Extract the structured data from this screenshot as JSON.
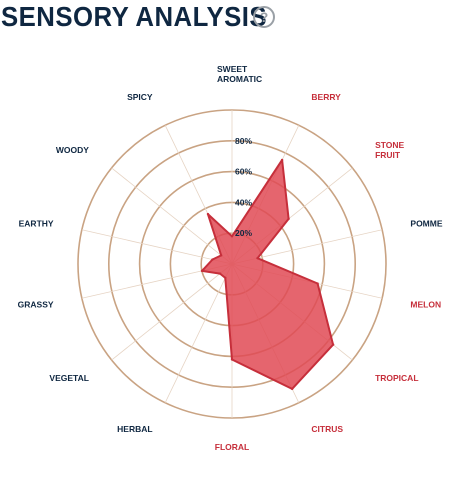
{
  "header": {
    "title": "SENSORY ANALYSIS",
    "help_glyph": "?"
  },
  "colors": {
    "navy": "#0f2741",
    "red": "#c62f3b",
    "ring": "#c9a383",
    "fill": "#e04a55"
  },
  "chart_data": {
    "type": "radar",
    "rmax": 100,
    "ticks": [
      {
        "value": 20,
        "label": "20%"
      },
      {
        "value": 40,
        "label": "40%"
      },
      {
        "value": 60,
        "label": "60%"
      },
      {
        "value": 80,
        "label": "80%"
      }
    ],
    "categories": [
      {
        "lines": [
          "SWEET",
          "AROMATIC"
        ],
        "value": 18,
        "highlight": false
      },
      {
        "lines": [
          "BERRY"
        ],
        "value": 75,
        "highlight": true
      },
      {
        "lines": [
          "STONE",
          "FRUIT"
        ],
        "value": 47,
        "highlight": true
      },
      {
        "lines": [
          "POMME"
        ],
        "value": 17,
        "highlight": false
      },
      {
        "lines": [
          "MELON"
        ],
        "value": 57,
        "highlight": true
      },
      {
        "lines": [
          "TROPICAL"
        ],
        "value": 84,
        "highlight": true
      },
      {
        "lines": [
          "CITRUS"
        ],
        "value": 90,
        "highlight": true
      },
      {
        "lines": [
          "FLORAL"
        ],
        "value": 62,
        "highlight": true
      },
      {
        "lines": [
          "HERBAL"
        ],
        "value": 10,
        "highlight": false
      },
      {
        "lines": [
          "VEGETAL"
        ],
        "value": 10,
        "highlight": false
      },
      {
        "lines": [
          "GRASSY"
        ],
        "value": 20,
        "highlight": false
      },
      {
        "lines": [
          "EARTHY"
        ],
        "value": 13,
        "highlight": false
      },
      {
        "lines": [
          "WOODY"
        ],
        "value": 9,
        "highlight": false
      },
      {
        "lines": [
          "SPICY"
        ],
        "value": 36,
        "highlight": false
      }
    ]
  }
}
